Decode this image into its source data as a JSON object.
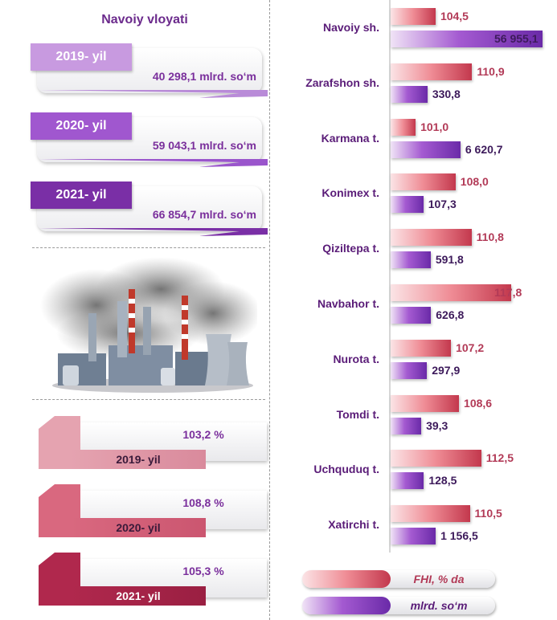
{
  "region": {
    "title": "Navoiy vloyati"
  },
  "production_years": [
    {
      "year": "2019- yil",
      "value": "40 298,1 mlrd. so‘m",
      "tab_color": "#c89ae0",
      "accent": "#b98bd8"
    },
    {
      "year": "2020- yil",
      "value": "59 043,1 mlrd. so‘m",
      "tab_color": "#a057cf",
      "accent": "#9a55cc"
    },
    {
      "year": "2021- yil",
      "value": "66 854,7 mlrd. so‘m",
      "tab_color": "#7a2fa6",
      "accent": "#7a2fa6"
    }
  ],
  "growth_years": [
    {
      "year": "2019- yil",
      "value": "103,2 %",
      "color": "#e5a3b0",
      "dark": "#d98a9c"
    },
    {
      "year": "2020- yil",
      "value": "108,8 %",
      "color": "#d9687f",
      "dark": "#cb5670"
    },
    {
      "year": "2021- yil",
      "value": "105,3 %",
      "color": "#b0284d",
      "dark": "#9a1f42"
    }
  ],
  "chart_data": {
    "type": "bar",
    "orientation": "horizontal",
    "categories": [
      "Navoiy sh.",
      "Zarafshon sh.",
      "Karmana t.",
      "Konimex t.",
      "Qiziltepa t.",
      "Navbahor t.",
      "Nurota t.",
      "Tomdi t.",
      "Uchquduq t.",
      "Xatirchi t."
    ],
    "series": [
      {
        "name": "FHI, % da",
        "values": [
          104.5,
          110.9,
          101.0,
          108.0,
          110.8,
          117.8,
          107.2,
          108.6,
          112.5,
          110.5
        ],
        "labels": [
          "104,5",
          "110,9",
          "101,0",
          "108,0",
          "110,8",
          "117,8",
          "107,2",
          "108,6",
          "112,5",
          "110,5"
        ]
      },
      {
        "name": "mlrd. so‘m",
        "values": [
          56955.1,
          330.8,
          6620.7,
          107.3,
          591.8,
          626.8,
          297.9,
          39.3,
          128.5,
          1156.5
        ],
        "labels": [
          "56 955,1",
          "330,8",
          "6 620,7",
          "107,3",
          "591,8",
          "626,8",
          "297,9",
          "39,3",
          "128,5",
          "1 156,5"
        ]
      }
    ],
    "legend": [
      "FHI, % da",
      "mlrd. so‘m"
    ],
    "legend_position": "bottom",
    "colors": {
      "fhi": "#c3384d",
      "mlrd": "#6a2aa8"
    },
    "grid": false
  }
}
